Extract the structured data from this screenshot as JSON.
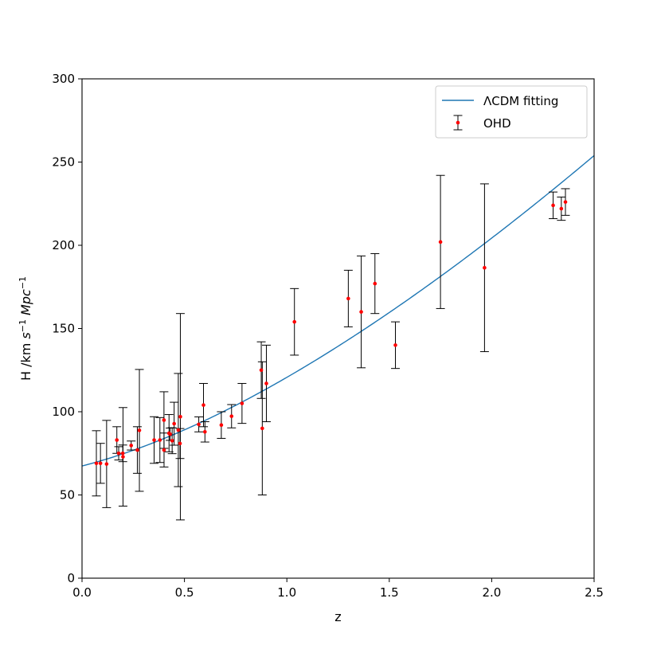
{
  "chart_data": {
    "type": "scatter",
    "xlabel": "z",
    "ylabel": {
      "prefix": "H /km ",
      "s": "s",
      "s_exp": "−1",
      "mid": " ",
      "mpc": "Mpc",
      "mpc_exp": "−1"
    },
    "xlim": [
      0.0,
      2.5
    ],
    "ylim": [
      0,
      300
    ],
    "xticks": [
      0.0,
      0.5,
      1.0,
      1.5,
      2.0,
      2.5
    ],
    "xtick_labels": [
      "0.0",
      "0.5",
      "1.0",
      "1.5",
      "2.0",
      "2.5"
    ],
    "yticks": [
      0,
      50,
      100,
      150,
      200,
      250,
      300
    ],
    "ytick_labels": [
      "0",
      "50",
      "100",
      "150",
      "200",
      "250",
      "300"
    ],
    "grid": false,
    "legend_position": "top-right",
    "legend": [
      {
        "label": "ΛCDM fitting",
        "kind": "line"
      },
      {
        "label": "OHD",
        "kind": "errorbar"
      }
    ],
    "fit": {
      "name": "ΛCDM fitting",
      "H0": 67.4,
      "Om": 0.315,
      "color": "#1f77b4"
    },
    "ohd": {
      "name": "OHD",
      "marker_color": "#ff0000",
      "errorbar_color": "#000000",
      "points": [
        {
          "z": 0.07,
          "H": 69,
          "err": 19.6
        },
        {
          "z": 0.09,
          "H": 69,
          "err": 12
        },
        {
          "z": 0.12,
          "H": 68.6,
          "err": 26.2
        },
        {
          "z": 0.17,
          "H": 83,
          "err": 8
        },
        {
          "z": 0.179,
          "H": 75,
          "err": 4
        },
        {
          "z": 0.199,
          "H": 75,
          "err": 5
        },
        {
          "z": 0.2,
          "H": 72.9,
          "err": 29.6
        },
        {
          "z": 0.24,
          "H": 79.7,
          "err": 2.7
        },
        {
          "z": 0.27,
          "H": 77,
          "err": 14
        },
        {
          "z": 0.28,
          "H": 88.8,
          "err": 36.6
        },
        {
          "z": 0.352,
          "H": 83,
          "err": 14
        },
        {
          "z": 0.3802,
          "H": 83,
          "err": 13.5
        },
        {
          "z": 0.4,
          "H": 95,
          "err": 17
        },
        {
          "z": 0.4004,
          "H": 77,
          "err": 10.2
        },
        {
          "z": 0.4247,
          "H": 87.1,
          "err": 11.2
        },
        {
          "z": 0.43,
          "H": 86.5,
          "err": 3.7
        },
        {
          "z": 0.44,
          "H": 82.6,
          "err": 7.8
        },
        {
          "z": 0.4497,
          "H": 92.8,
          "err": 12.9
        },
        {
          "z": 0.47,
          "H": 89,
          "err": 34
        },
        {
          "z": 0.4783,
          "H": 80.9,
          "err": 9
        },
        {
          "z": 0.48,
          "H": 97,
          "err": 62
        },
        {
          "z": 0.57,
          "H": 92.4,
          "err": 4.5
        },
        {
          "z": 0.593,
          "H": 104,
          "err": 13
        },
        {
          "z": 0.6,
          "H": 87.9,
          "err": 6.1
        },
        {
          "z": 0.68,
          "H": 92,
          "err": 8
        },
        {
          "z": 0.73,
          "H": 97.3,
          "err": 7
        },
        {
          "z": 0.781,
          "H": 105,
          "err": 12
        },
        {
          "z": 0.875,
          "H": 125,
          "err": 17
        },
        {
          "z": 0.88,
          "H": 90,
          "err": 40
        },
        {
          "z": 0.9,
          "H": 117,
          "err": 23
        },
        {
          "z": 1.037,
          "H": 154,
          "err": 20
        },
        {
          "z": 1.3,
          "H": 168,
          "err": 17
        },
        {
          "z": 1.363,
          "H": 160,
          "err": 33.6
        },
        {
          "z": 1.43,
          "H": 177,
          "err": 18
        },
        {
          "z": 1.53,
          "H": 140,
          "err": 14
        },
        {
          "z": 1.75,
          "H": 202,
          "err": 40
        },
        {
          "z": 1.965,
          "H": 186.5,
          "err": 50.4
        },
        {
          "z": 2.3,
          "H": 224,
          "err": 8
        },
        {
          "z": 2.34,
          "H": 222,
          "err": 7
        },
        {
          "z": 2.36,
          "H": 226,
          "err": 8
        }
      ]
    }
  }
}
